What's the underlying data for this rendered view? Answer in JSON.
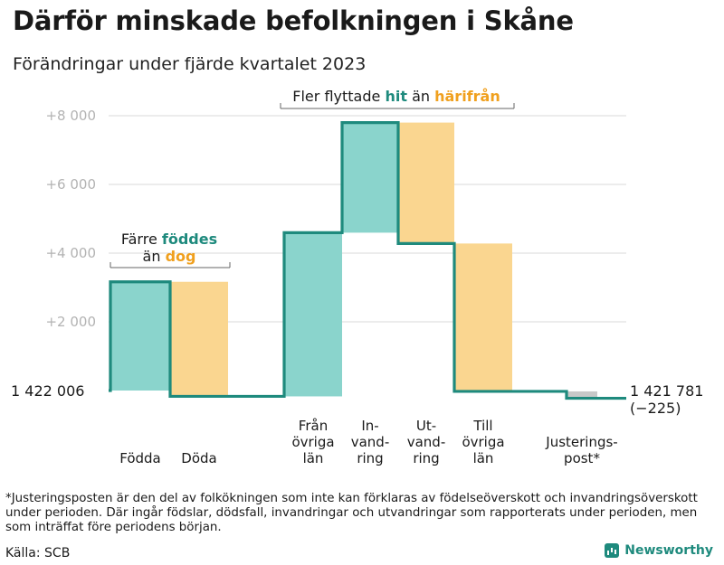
{
  "title": "Därför minskade befolkningen i Skåne",
  "subtitle": "Förändringar under fjärde kvartalet 2023",
  "colors": {
    "inflow": "#8ad4cc",
    "outflow": "#fad690",
    "adjust": "#c8c8c8",
    "line": "#1e8a7d",
    "hit": "#1e8a7d",
    "harifran": "#f0a01e",
    "grid": "#d9d9d9"
  },
  "chart_data": {
    "type": "waterfall",
    "start_label": "1 422 006",
    "start_value": 1422006,
    "end_label": "1 421 781",
    "end_change": "(−225)",
    "end_value": 1421781,
    "y_ticks": [
      {
        "value": 2000,
        "label": "+2  000"
      },
      {
        "value": 4000,
        "label": "+4  000"
      },
      {
        "value": 6000,
        "label": "+6  000"
      },
      {
        "value": 8000,
        "label": "+8  000"
      }
    ],
    "ylim": [
      -1000,
      8500
    ],
    "bars": [
      {
        "label_lines": [
          "Födda"
        ],
        "value": 3165,
        "kind": "inflow"
      },
      {
        "label_lines": [
          "Döda"
        ],
        "value": -3335,
        "kind": "outflow"
      },
      {
        "label_lines": [
          "Från",
          "övriga",
          "län"
        ],
        "value": 4765,
        "kind": "inflow"
      },
      {
        "label_lines": [
          "In-",
          "vand-",
          "ring"
        ],
        "value": 3205,
        "kind": "inflow"
      },
      {
        "label_lines": [
          "Ut-",
          "vand-",
          "ring"
        ],
        "value": -3520,
        "kind": "outflow"
      },
      {
        "label_lines": [
          "Till",
          "övriga",
          "län"
        ],
        "value": -4305,
        "kind": "outflow"
      },
      {
        "label_lines": [
          "Justerings-",
          "post*"
        ],
        "value": -200,
        "kind": "adjust"
      }
    ],
    "annotations": [
      {
        "line1": "Färre",
        "emph1": "föddes",
        "line2": "än",
        "emph2": "dog"
      },
      {
        "text1": "Fler flyttade",
        "emph1": "hit",
        "text2": "än",
        "emph2": "härifrån"
      }
    ]
  },
  "footnote": "*Justeringsposten är den del av folkökningen som inte kan förklaras av födelseöverskott och invandringsöverskott under perioden. Där ingår födslar, dödsfall, invandringar och utvandringar som rapporterats under perioden, men som inträffat före periodens början.",
  "source": "Källa: SCB",
  "brand": "Newsworthy"
}
